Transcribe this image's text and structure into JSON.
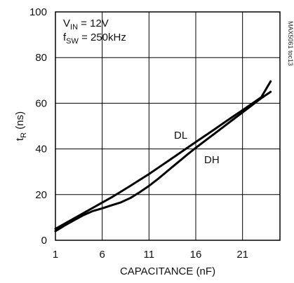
{
  "chart_data": {
    "type": "line",
    "title": "",
    "xlabel": "CAPACITANCE (nF)",
    "ylabel": {
      "main": "t",
      "sub": "R",
      "unit": " (ns)"
    },
    "xlim": [
      1,
      25
    ],
    "ylim": [
      0,
      100
    ],
    "xticks": [
      1,
      6,
      11,
      16,
      21
    ],
    "yticks": [
      0,
      20,
      40,
      60,
      80,
      100
    ],
    "grid": true,
    "conditions": [
      {
        "main": "V",
        "sub": "IN",
        "rest": " = 12V"
      },
      {
        "main": "f",
        "sub": "SW",
        "rest": " = 250kHz"
      }
    ],
    "side_code": "MAX5061 toc13",
    "series": [
      {
        "name": "DL",
        "x": [
          1,
          2,
          3,
          4,
          5,
          6,
          7,
          8,
          9,
          10,
          11,
          12,
          13,
          14,
          15,
          16,
          17,
          18,
          19,
          20,
          21,
          22,
          23,
          24
        ],
        "y": [
          5,
          7.3,
          9.6,
          11.9,
          14.2,
          16.5,
          18.8,
          21.3,
          23.8,
          26.4,
          29.0,
          31.8,
          34.6,
          37.4,
          40.2,
          43.0,
          45.8,
          48.6,
          51.4,
          54.2,
          57.0,
          59.8,
          62.6,
          69.6
        ]
      },
      {
        "name": "DH",
        "x": [
          1,
          2,
          3,
          4,
          5,
          6,
          7,
          8,
          9,
          10,
          11,
          12,
          13,
          14,
          15,
          16,
          17,
          18,
          19,
          20,
          21,
          22,
          23,
          24
        ],
        "y": [
          4,
          6.5,
          8.8,
          11.0,
          12.8,
          14.0,
          15.3,
          16.6,
          18.5,
          21.0,
          23.8,
          27.0,
          30.4,
          33.8,
          37.2,
          40.5,
          43.6,
          46.7,
          49.8,
          52.9,
          56.0,
          59.1,
          62.2,
          65.0
        ]
      }
    ]
  }
}
